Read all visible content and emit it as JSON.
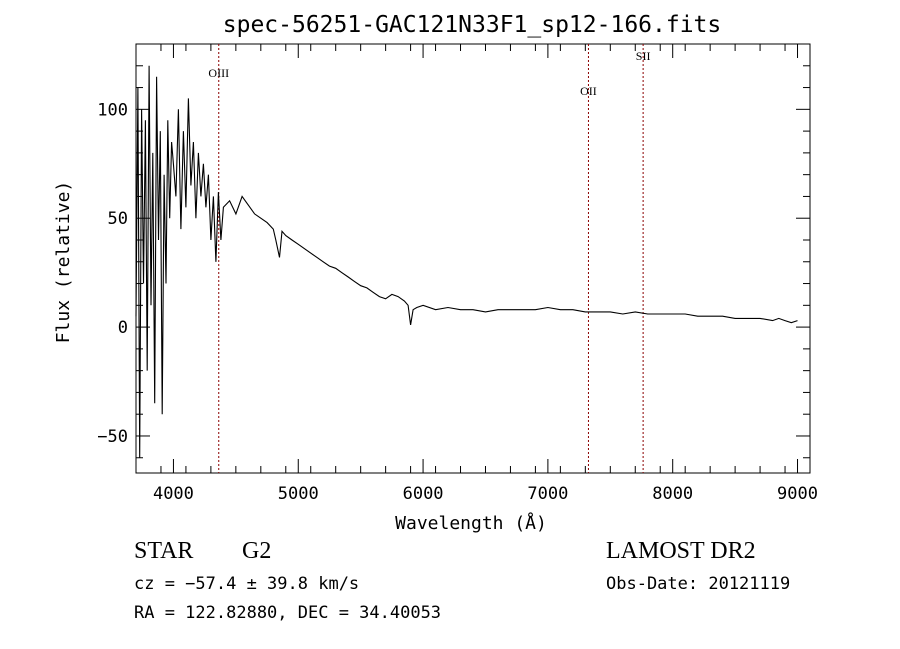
{
  "chart_data": {
    "type": "line",
    "title": "spec-56251-GAC121N33F1_sp12-166.fits",
    "xlabel": "Wavelength (Å)",
    "ylabel": "Flux (relative)",
    "xlim": [
      3700,
      9100
    ],
    "ylim": [
      -67,
      130
    ],
    "x_ticks": [
      4000,
      5000,
      6000,
      7000,
      8000,
      9000
    ],
    "y_ticks": [
      -50,
      0,
      50,
      100
    ],
    "x_tick_labels": [
      "4000",
      "5000",
      "6000",
      "7000",
      "8000",
      "9000"
    ],
    "y_tick_labels": [
      "−50",
      "0",
      "50",
      "100"
    ],
    "series": [
      {
        "x": [
          3700,
          3715,
          3730,
          3745,
          3760,
          3775,
          3790,
          3805,
          3820,
          3835,
          3850,
          3865,
          3880,
          3895,
          3910,
          3925,
          3940,
          3955,
          3970,
          3985,
          4000,
          4020,
          4040,
          4060,
          4080,
          4100,
          4120,
          4140,
          4160,
          4180,
          4200,
          4220,
          4240,
          4260,
          4280,
          4300,
          4320,
          4340,
          4360,
          4380,
          4400,
          4450,
          4500,
          4550,
          4600,
          4650,
          4700,
          4750,
          4800,
          4820,
          4850,
          4870,
          4900,
          4950,
          5000,
          5050,
          5100,
          5150,
          5200,
          5250,
          5300,
          5350,
          5400,
          5450,
          5500,
          5550,
          5600,
          5650,
          5700,
          5750,
          5800,
          5850,
          5880,
          5900,
          5920,
          5950,
          6000,
          6100,
          6200,
          6300,
          6400,
          6500,
          6600,
          6700,
          6800,
          6900,
          7000,
          7100,
          7200,
          7300,
          7400,
          7500,
          7600,
          7700,
          7800,
          7900,
          8000,
          8100,
          8200,
          8300,
          8400,
          8500,
          8600,
          8700,
          8800,
          8850,
          8900,
          8950,
          9000
        ],
        "y": [
          5,
          110,
          -60,
          100,
          20,
          95,
          -20,
          120,
          10,
          80,
          -35,
          115,
          40,
          90,
          -40,
          70,
          20,
          95,
          50,
          85,
          75,
          60,
          100,
          45,
          90,
          55,
          105,
          65,
          85,
          50,
          80,
          60,
          75,
          55,
          70,
          40,
          60,
          30,
          62,
          40,
          55,
          58,
          52,
          60,
          56,
          52,
          50,
          48,
          45,
          40,
          32,
          44,
          42,
          40,
          38,
          36,
          34,
          32,
          30,
          28,
          27,
          25,
          23,
          21,
          19,
          18,
          16,
          14,
          13,
          15,
          14,
          12,
          10,
          1,
          8,
          9,
          10,
          8,
          9,
          8,
          8,
          7,
          8,
          8,
          8,
          8,
          9,
          8,
          8,
          7,
          7,
          7,
          6,
          7,
          6,
          6,
          6,
          6,
          5,
          5,
          5,
          4,
          4,
          4,
          3,
          4,
          3,
          2,
          3
        ]
      }
    ],
    "lines": [
      {
        "label": "OIII",
        "x": 4363
      },
      {
        "label": "OII",
        "x": 7325
      },
      {
        "label": "SII",
        "x": 7763
      }
    ],
    "line_color": "#8b0000",
    "grid": false
  },
  "info": {
    "object_class": "STAR",
    "subclass": "G2",
    "survey": "LAMOST DR2",
    "redshift": "cz = −57.4 ± 39.8 km/s",
    "obs_date": "Obs-Date: 20121119",
    "coords": "RA = 122.82880, DEC =  34.40053"
  }
}
